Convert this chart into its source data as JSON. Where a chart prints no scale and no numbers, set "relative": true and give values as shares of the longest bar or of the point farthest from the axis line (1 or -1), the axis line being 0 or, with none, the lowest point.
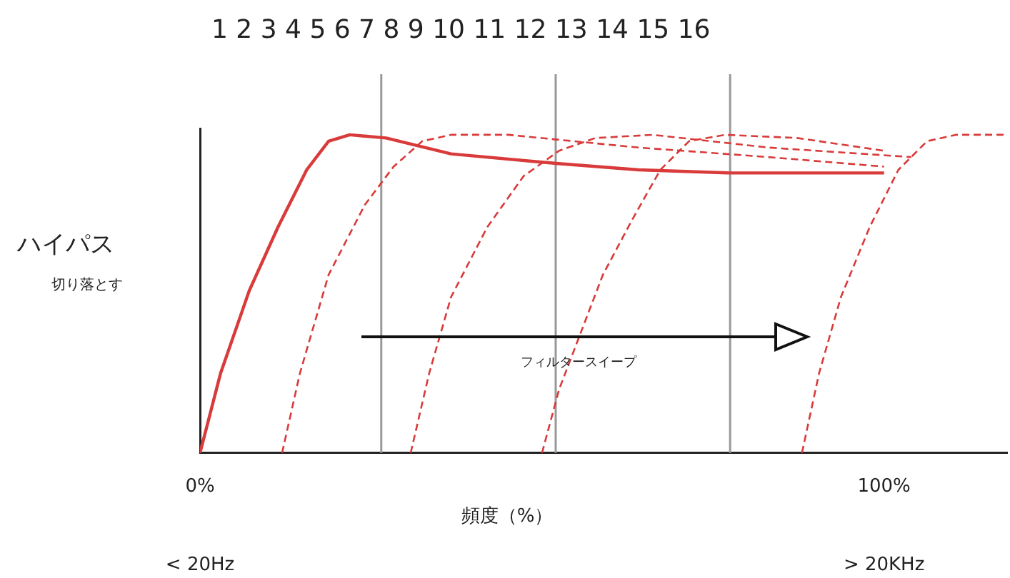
{
  "chart_data": {
    "type": "line",
    "title": "1 2 3 4 5 6 7 8 9 10 11 12 13 14 15 16",
    "ylabel": "ハイパス",
    "xlabel": "頻度（%）",
    "relative": true,
    "legend": false,
    "grid": false,
    "marker": "none",
    "xlim": [
      0,
      118
    ],
    "xticks": [
      {
        "value": 0,
        "label": "0%"
      },
      {
        "value": 100,
        "label": "100%"
      }
    ],
    "annotations": [
      "切り落とす",
      "フィルタースイープ",
      "< 20Hz",
      "> 20KHz"
    ],
    "ref_lines": [
      {
        "axis": "x",
        "value": 26.5,
        "color": "#999999"
      },
      {
        "axis": "x",
        "value": 52,
        "color": "#999999"
      },
      {
        "axis": "x",
        "value": 77.5,
        "color": "#999999"
      }
    ],
    "series": [
      {
        "color": "#d93a3a",
        "line_style": "solid",
        "x": [
          0,
          3,
          7.2,
          11.4,
          15.6,
          18.8,
          21.9,
          27.2,
          36.7,
          52.1,
          64.1,
          77.6,
          100
        ],
        "values": [
          0,
          0.25,
          0.51,
          0.71,
          0.89,
          0.98,
          1,
          0.99,
          0.94,
          0.91,
          0.89,
          0.88,
          0.88
        ]
      },
      {
        "color": "#d93a3a",
        "line_style": "dashed",
        "x": [
          12,
          14.6,
          18.8,
          24.1,
          28.3,
          32.5,
          36.7,
          45.1,
          64.1,
          83.1,
          100
        ],
        "values": [
          0,
          0.25,
          0.56,
          0.78,
          0.9,
          0.98,
          1,
          1,
          0.96,
          0.93,
          0.9
        ]
      },
      {
        "color": "#d93a3a",
        "line_style": "dashed",
        "x": [
          30.8,
          33.5,
          36.7,
          42,
          47.3,
          52.5,
          57.8,
          66.2,
          83.1,
          104
        ],
        "values": [
          0,
          0.25,
          0.49,
          0.71,
          0.87,
          0.95,
          0.99,
          1,
          0.96,
          0.93
        ]
      },
      {
        "color": "#d93a3a",
        "line_style": "dashed",
        "x": [
          50,
          52.5,
          55.7,
          58.9,
          63.1,
          67.3,
          71.5,
          76.8,
          87.3,
          100
        ],
        "values": [
          0,
          0.2,
          0.38,
          0.56,
          0.73,
          0.89,
          0.98,
          1,
          0.99,
          0.95
        ]
      },
      {
        "color": "#d93a3a",
        "line_style": "dashed",
        "x": [
          88,
          90.5,
          93.7,
          97.9,
          102.1,
          106.3,
          110.5,
          118
        ],
        "values": [
          0,
          0.25,
          0.49,
          0.71,
          0.89,
          0.98,
          1,
          1
        ]
      }
    ]
  }
}
